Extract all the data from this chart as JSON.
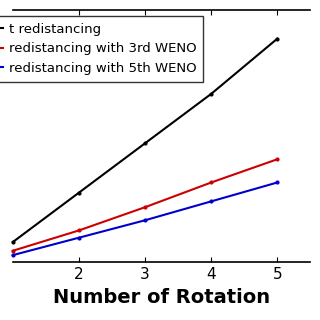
{
  "xlabel": "Number of Rotation",
  "xlim": [
    1.0,
    5.5
  ],
  "ylim": [
    -0.02,
    0.85
  ],
  "x_ticks": [
    2,
    3,
    4,
    5
  ],
  "legend_labels": [
    "t redistancing",
    "redistancing with 3rd WENO",
    "redistancing with 5th WENO"
  ],
  "line_colors": [
    "#000000",
    "#cc0000",
    "#0000cc"
  ],
  "series": [
    {
      "x": [
        1.0,
        2.0,
        3.0,
        4.0,
        5.0
      ],
      "y": [
        0.05,
        0.22,
        0.39,
        0.56,
        0.75
      ],
      "color": "#000000"
    },
    {
      "x": [
        1.0,
        2.0,
        3.0,
        4.0,
        5.0
      ],
      "y": [
        0.02,
        0.09,
        0.17,
        0.255,
        0.335
      ],
      "color": "#cc0000"
    },
    {
      "x": [
        1.0,
        2.0,
        3.0,
        4.0,
        5.0
      ],
      "y": [
        0.005,
        0.065,
        0.125,
        0.19,
        0.255
      ],
      "color": "#0000cc"
    }
  ],
  "background_color": "#ffffff",
  "markersize": 4,
  "linewidth": 1.5,
  "xlabel_fontsize": 14,
  "legend_fontsize": 9.5
}
